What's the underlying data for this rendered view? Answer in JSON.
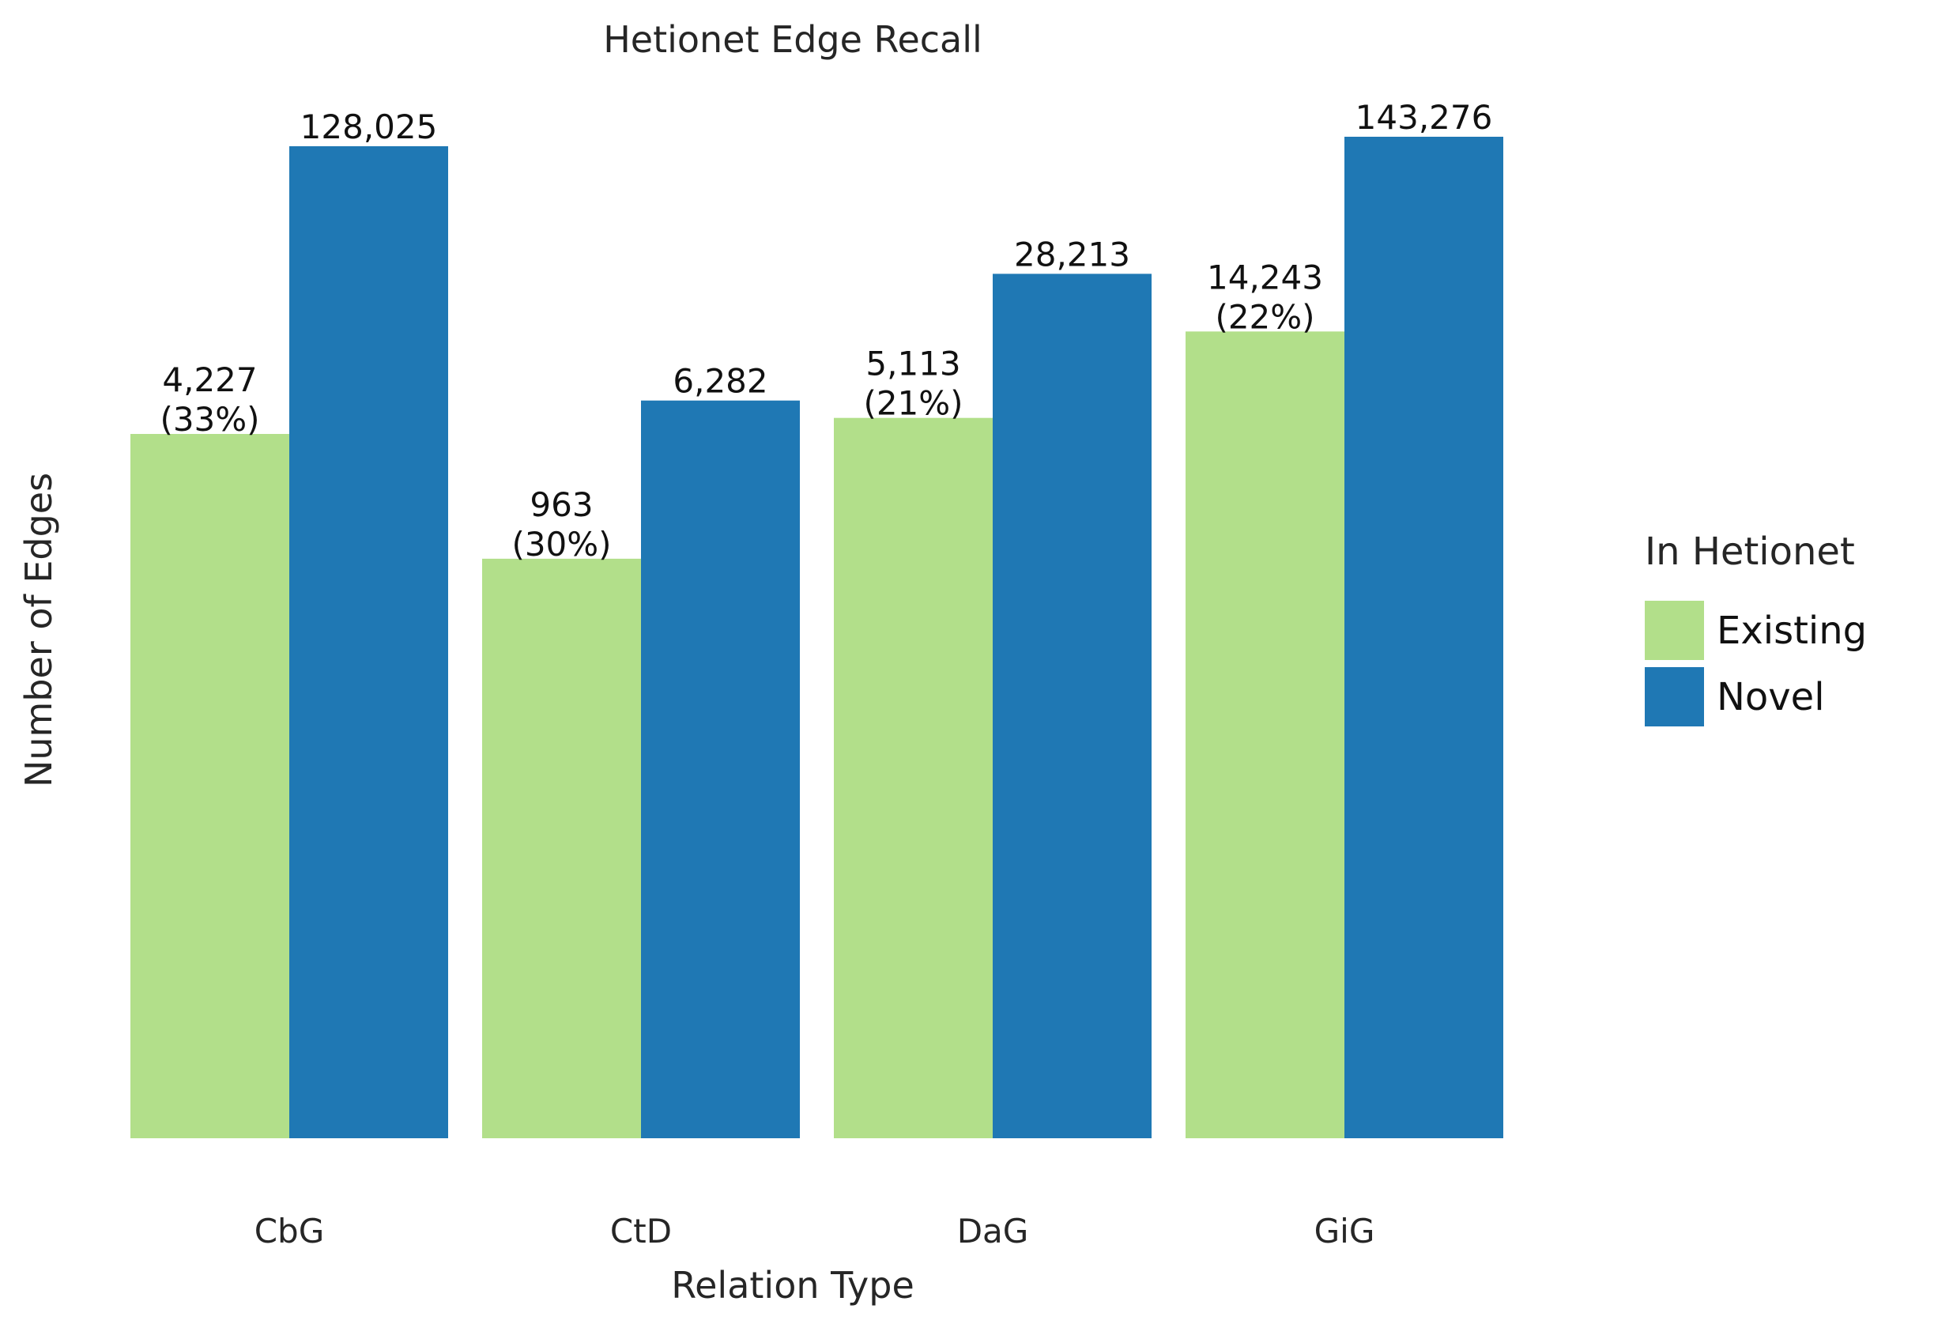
{
  "chart_data": {
    "type": "bar",
    "title": "Hetionet Edge Recall",
    "xlabel": "Relation Type",
    "ylabel": "Number of Edges",
    "scale": "log",
    "categories": [
      "CbG",
      "CtD",
      "DaG",
      "GiG"
    ],
    "series": [
      {
        "name": "Existing",
        "color": "#b2df8a",
        "values": [
          4227,
          963,
          5113,
          14243
        ],
        "labels": [
          "4,227",
          "963",
          "5,113",
          "14,243"
        ],
        "percent_labels": [
          "(33%)",
          "(30%)",
          "(21%)",
          "(22%)"
        ]
      },
      {
        "name": "Novel",
        "color": "#1f78b4",
        "values": [
          128025,
          6282,
          28213,
          143276
        ],
        "labels": [
          "128,025",
          "6,282",
          "28,213",
          "143,276"
        ]
      }
    ],
    "legend": {
      "title": "In Hetionet",
      "position": "right"
    },
    "grid": false
  }
}
